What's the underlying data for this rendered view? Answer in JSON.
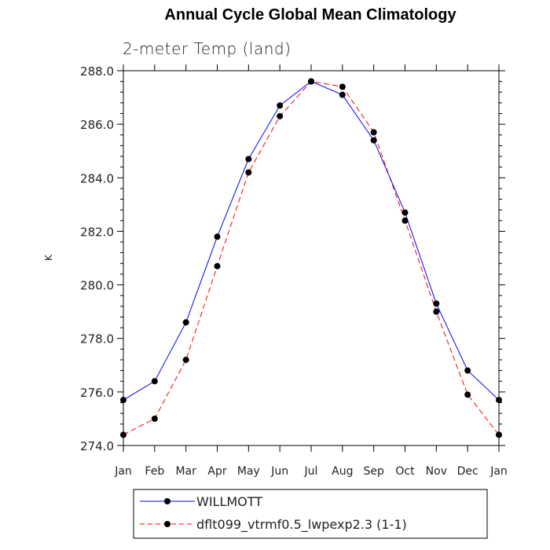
{
  "chart_data": {
    "type": "line",
    "title": "Annual Cycle Global Mean Climatology",
    "subtitle": "2-meter Temp (land)",
    "xlabel": "",
    "ylabel": "K",
    "categories": [
      "Jan",
      "Feb",
      "Mar",
      "Apr",
      "May",
      "Jun",
      "Jul",
      "Aug",
      "Sep",
      "Oct",
      "Nov",
      "Dec",
      "Jan"
    ],
    "ylim": [
      274.0,
      288.0
    ],
    "yticks": [
      "274.0",
      "276.0",
      "278.0",
      "280.0",
      "282.0",
      "284.0",
      "286.0",
      "288.0"
    ],
    "grid": false,
    "legend_position": "bottom-center",
    "series": [
      {
        "name": "WILLMOTT",
        "color": "#0000ff",
        "line_style": "solid",
        "values": [
          275.7,
          276.4,
          278.6,
          281.8,
          284.7,
          286.7,
          287.6,
          287.1,
          285.4,
          282.7,
          279.3,
          276.8,
          275.7
        ]
      },
      {
        "name": "dflt099_vtrmf0.5_lwpexp2.3 (1-1)",
        "color": "#ff0000",
        "line_style": "dashed",
        "values": [
          274.4,
          275.0,
          277.2,
          280.7,
          284.2,
          286.3,
          287.6,
          287.4,
          285.7,
          282.4,
          279.0,
          275.9,
          274.4
        ]
      }
    ]
  }
}
